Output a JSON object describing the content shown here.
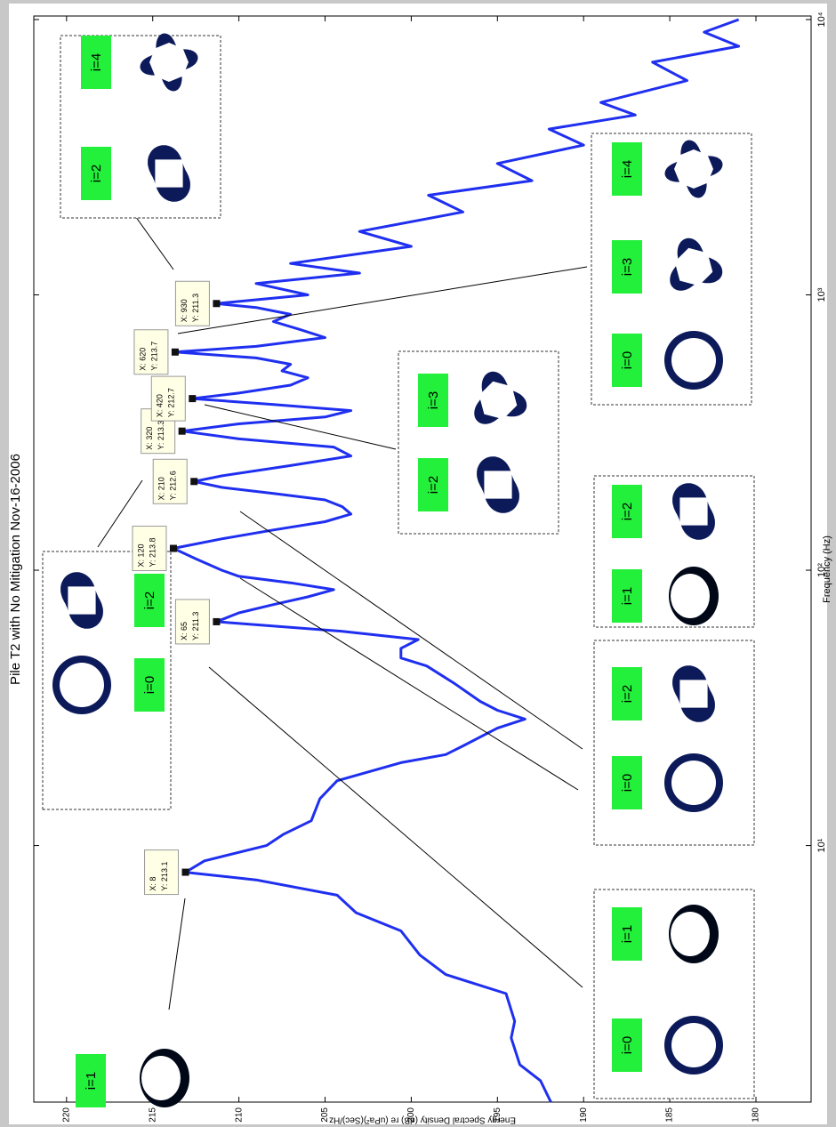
{
  "chart_data": {
    "type": "line",
    "title": "Pile T2 with No Mitigation Nov-16-2006",
    "x_label": "Frequency (Hz)",
    "y_label": "Energy Spectral Density (dB) re (uPa²)(Sec)/Hz",
    "xscale": "log",
    "color": "#1f2ff0",
    "x": [
      1.17,
      1.4,
      1.6,
      2,
      2.3,
      2.9,
      3.4,
      4,
      4.9,
      5.7,
      6.6,
      7.5,
      8,
      8.8,
      10,
      11,
      12.3,
      14.8,
      17.2,
      20,
      21.4,
      23,
      26.7,
      28.8,
      31,
      33.4,
      38.8,
      44.9,
      48,
      52,
      56,
      60,
      65,
      70,
      75,
      80,
      85,
      90,
      95,
      100,
      110,
      120,
      130,
      140,
      150,
      160,
      170,
      180,
      190,
      200,
      210,
      220,
      240,
      260,
      280,
      300,
      320,
      340,
      360,
      380,
      400,
      420,
      440,
      470,
      500,
      530,
      560,
      590,
      620,
      650,
      700,
      750,
      800,
      850,
      900,
      930,
      1000,
      1100,
      1200,
      1300,
      1500,
      1700,
      2000,
      2300,
      2600,
      3000,
      3500,
      4000,
      4500,
      5000,
      6000,
      7000,
      8000,
      9000,
      10000
    ],
    "values": [
      191.9,
      192.5,
      193.7,
      194.2,
      194,
      194.5,
      198,
      199.5,
      200.6,
      203.2,
      204.3,
      209,
      213.1,
      212,
      208.4,
      207.4,
      205.8,
      205.3,
      204.3,
      200.6,
      198,
      197,
      195,
      193.4,
      195,
      196,
      197.5,
      199.1,
      200.6,
      200.6,
      199.6,
      204,
      211.3,
      210,
      208,
      206,
      204.5,
      207,
      210,
      211,
      212.5,
      213.8,
      211,
      208,
      205,
      203.5,
      204,
      205,
      208,
      211,
      212.6,
      211,
      207,
      203.5,
      204.5,
      210,
      213.3,
      210,
      205,
      203.5,
      208,
      212.7,
      210,
      207,
      206,
      207.5,
      207,
      209,
      213.7,
      209,
      205,
      206.5,
      208,
      207,
      209,
      211.3,
      206,
      209,
      203,
      207,
      200,
      203,
      197,
      199,
      193,
      195,
      190,
      192,
      187,
      189,
      184,
      186,
      181,
      183,
      181
    ],
    "xlim": [
      1.17,
      10300
    ],
    "ylim": [
      176.8,
      221.9
    ],
    "xticks": [
      {
        "value": 10,
        "label": "10¹"
      },
      {
        "value": 100,
        "label": "10²"
      },
      {
        "value": 1000,
        "label": "10³"
      },
      {
        "value": 10000,
        "label": "10⁴"
      }
    ],
    "yticks": [
      180,
      185,
      190,
      195,
      200,
      205,
      210,
      215,
      220
    ],
    "datatips": [
      {
        "x": 8,
        "y": 213.1,
        "labels": [
          "X: 8",
          "Y: 213.1"
        ]
      },
      {
        "x": 65,
        "y": 211.3,
        "labels": [
          "X: 65",
          "Y: 211.3"
        ]
      },
      {
        "x": 120,
        "y": 213.8,
        "labels": [
          "X: 120",
          "Y: 213.8"
        ]
      },
      {
        "x": 210,
        "y": 212.6,
        "labels": [
          "X: 210",
          "Y: 212.6"
        ]
      },
      {
        "x": 320,
        "y": 213.3,
        "labels": [
          "X: 320",
          "Y: 213.3"
        ]
      },
      {
        "x": 420,
        "y": 212.7,
        "labels": [
          "X: 420",
          "Y: 212.7"
        ]
      },
      {
        "x": 620,
        "y": 213.7,
        "labels": [
          "X: 620",
          "Y: 213.7"
        ]
      },
      {
        "x": 930,
        "y": 211.3,
        "labels": [
          "X: 930",
          "Y: 211.3"
        ]
      }
    ],
    "insets": [
      {
        "labels": [
          "i=1"
        ],
        "box": false
      },
      {
        "labels": [
          "i=0",
          "i=2"
        ],
        "box": true
      },
      {
        "labels": [
          "i=0",
          "i=1"
        ],
        "box": true
      },
      {
        "labels": [
          "i=0",
          "i=2"
        ],
        "box": true
      },
      {
        "labels": [
          "i=1",
          "i=2"
        ],
        "box": true
      },
      {
        "labels": [
          "i=2",
          "i=3"
        ],
        "box": true
      },
      {
        "labels": [
          "i=0",
          "i=3",
          "i=4"
        ],
        "box": true
      },
      {
        "labels": [
          "i=2",
          "i=4"
        ],
        "box": true
      }
    ]
  }
}
